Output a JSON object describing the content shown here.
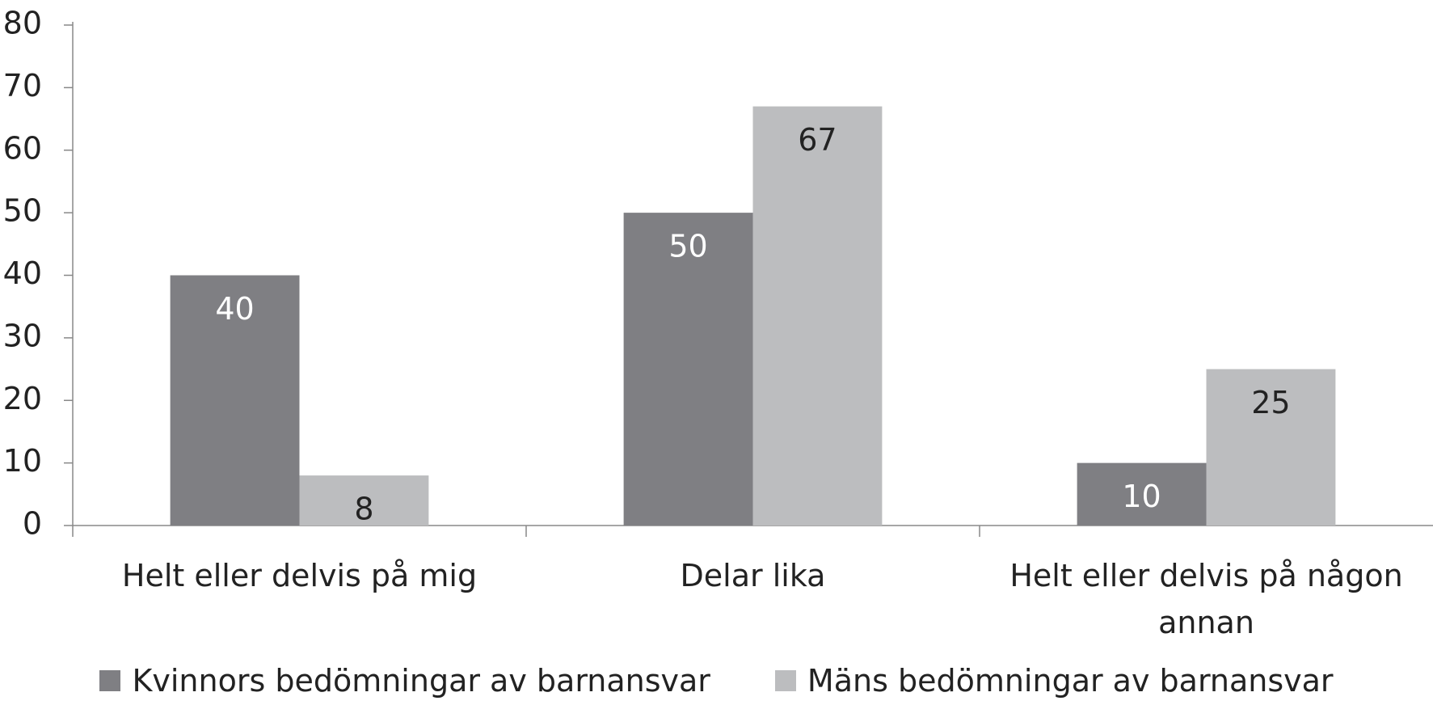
{
  "chart_data": {
    "type": "bar",
    "categories": [
      "Helt eller delvis på mig",
      "Delar lika",
      "Helt eller delvis på någon annan"
    ],
    "series": [
      {
        "name": "Kvinnors bedömningar av barnansvar",
        "color": "#7f7f83",
        "values": [
          40,
          50,
          10
        ]
      },
      {
        "name": "Mäns bedömningar av barnansvar",
        "color": "#bcbdbf",
        "values": [
          8,
          67,
          25
        ]
      }
    ],
    "ylim": [
      0,
      80
    ],
    "yticks": [
      0,
      10,
      20,
      30,
      40,
      50,
      60,
      70,
      80
    ],
    "legend": "bottom"
  }
}
